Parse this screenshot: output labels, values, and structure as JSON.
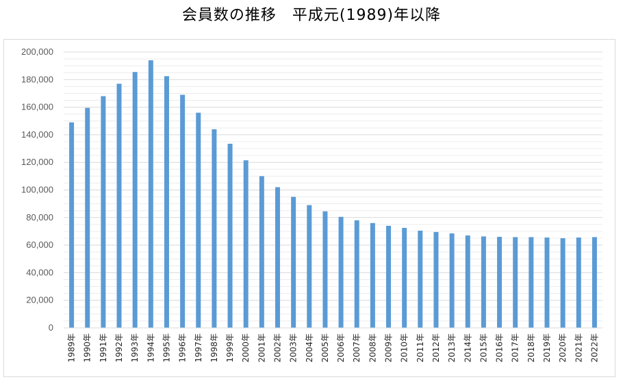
{
  "chart_data": {
    "type": "bar",
    "title": "会員数の推移　平成元(1989)年以降",
    "xlabel": "",
    "ylabel": "",
    "ylim": [
      0,
      200000
    ],
    "grid": true,
    "y_ticks": [
      "0",
      "20,000",
      "40,000",
      "60,000",
      "80,000",
      "100,000",
      "120,000",
      "140,000",
      "160,000",
      "180,000",
      "200,000"
    ],
    "y_tick_values": [
      0,
      20000,
      40000,
      60000,
      80000,
      100000,
      120000,
      140000,
      160000,
      180000,
      200000
    ],
    "categories": [
      "1989年",
      "1990年",
      "1991年",
      "1992年",
      "1993年",
      "1994年",
      "1995年",
      "1996年",
      "1997年",
      "1998年",
      "1999年",
      "2000年",
      "2001年",
      "2002年",
      "2003年",
      "2004年",
      "2005年",
      "2006年",
      "2007年",
      "2008年",
      "2009年",
      "2010年",
      "2011年",
      "2012年",
      "2013年",
      "2014年",
      "2015年",
      "2016年",
      "2017年",
      "2018年",
      "2019年",
      "2020年",
      "2021年",
      "2022年"
    ],
    "values": [
      149000,
      159500,
      168000,
      177000,
      185500,
      194000,
      182500,
      169000,
      156000,
      144000,
      133500,
      121500,
      110000,
      102000,
      95000,
      89000,
      84500,
      80500,
      78000,
      76000,
      74000,
      72500,
      70500,
      69500,
      68500,
      67000,
      66300,
      66000,
      65800,
      65800,
      65500,
      65000,
      65500,
      65800
    ],
    "color": "#5b9bd5"
  }
}
